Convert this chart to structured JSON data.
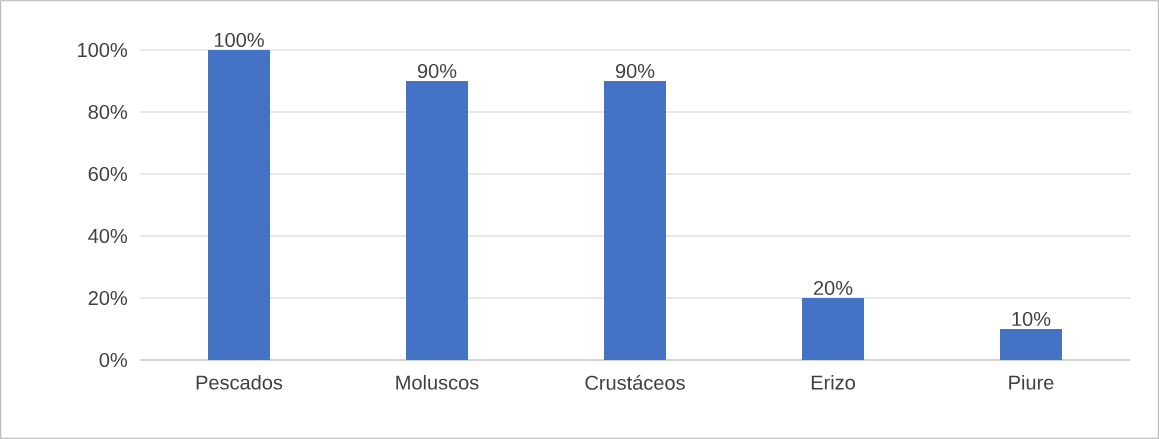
{
  "chart_data": {
    "type": "bar",
    "categories": [
      "Pescados",
      "Moluscos",
      "Crustáceos",
      "Erizo",
      "Piure"
    ],
    "values": [
      100,
      90,
      90,
      20,
      10
    ],
    "value_labels": [
      "100%",
      "90%",
      "90%",
      "20%",
      "10%"
    ],
    "color": "#4472c4",
    "ylim": [
      0,
      100
    ],
    "yticks": [
      {
        "value": 0,
        "label": "0%"
      },
      {
        "value": 20,
        "label": "20%"
      },
      {
        "value": 40,
        "label": "40%"
      },
      {
        "value": 60,
        "label": "60%"
      },
      {
        "value": 80,
        "label": "80%"
      },
      {
        "value": 100,
        "label": "100%"
      }
    ],
    "grid": "y"
  }
}
